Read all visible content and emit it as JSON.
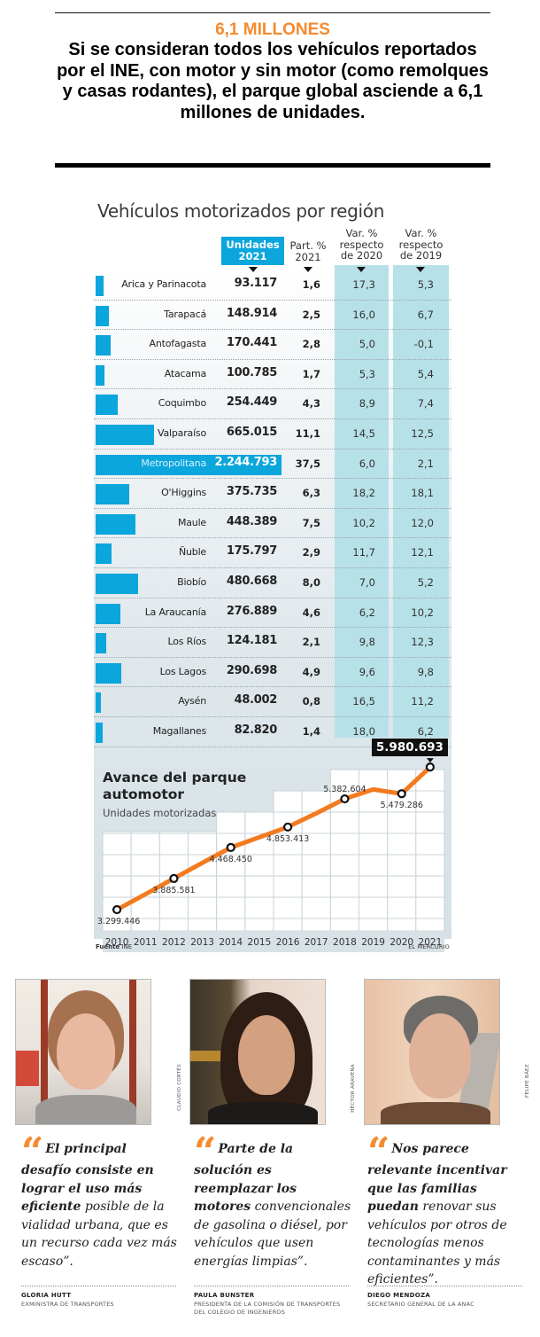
{
  "callout": {
    "kicker": "6,1 MILLONES",
    "text": "Si se consideran todos los vehículos reportados por el INE, con motor y sin motor (como remolques y casas rodantes), el parque global asciende a 6,1 millones de unidades."
  },
  "table": {
    "title": "Vehículos motorizados por región",
    "headers": {
      "units": "Unidades 2021",
      "part": "Part. % 2021",
      "var2020": "Var. % respecto de 2020",
      "var2019": "Var. % respecto de 2019"
    },
    "accent_color": "#0aa6dc",
    "highlight_color": "#b7e1e8",
    "rows": [
      {
        "region": "Arica y Parinacota",
        "units": "93.117",
        "part": "1,6",
        "var2020": "17,3",
        "var2019": "5,3",
        "units_value": 93117
      },
      {
        "region": "Tarapacá",
        "units": "148.914",
        "part": "2,5",
        "var2020": "16,0",
        "var2019": "6,7",
        "units_value": 148914
      },
      {
        "region": "Antofagasta",
        "units": "170.441",
        "part": "2,8",
        "var2020": "5,0",
        "var2019": "-0,1",
        "units_value": 170441
      },
      {
        "region": "Atacama",
        "units": "100.785",
        "part": "1,7",
        "var2020": "5,3",
        "var2019": "5,4",
        "units_value": 100785
      },
      {
        "region": "Coquimbo",
        "units": "254.449",
        "part": "4,3",
        "var2020": "8,9",
        "var2019": "7,4",
        "units_value": 254449
      },
      {
        "region": "Valparaíso",
        "units": "665.015",
        "part": "11,1",
        "var2020": "14,5",
        "var2019": "12,5",
        "units_value": 665015
      },
      {
        "region": "Metropolitana",
        "units": "2.244.793",
        "part": "37,5",
        "var2020": "6,0",
        "var2019": "2,1",
        "units_value": 2244793,
        "highlight": true
      },
      {
        "region": "O'Higgins",
        "units": "375.735",
        "part": "6,3",
        "var2020": "18,2",
        "var2019": "18,1",
        "units_value": 375735
      },
      {
        "region": "Maule",
        "units": "448.389",
        "part": "7,5",
        "var2020": "10,2",
        "var2019": "12,0",
        "units_value": 448389
      },
      {
        "region": "Ñuble",
        "units": "175.797",
        "part": "2,9",
        "var2020": "11,7",
        "var2019": "12,1",
        "units_value": 175797
      },
      {
        "region": "Biobío",
        "units": "480.668",
        "part": "8,0",
        "var2020": "7,0",
        "var2019": "5,2",
        "units_value": 480668
      },
      {
        "region": "La Araucanía",
        "units": "276.889",
        "part": "4,6",
        "var2020": "6,2",
        "var2019": "10,2",
        "units_value": 276889
      },
      {
        "region": "Los Ríos",
        "units": "124.181",
        "part": "2,1",
        "var2020": "9,8",
        "var2019": "12,3",
        "units_value": 124181
      },
      {
        "region": "Los Lagos",
        "units": "290.698",
        "part": "4,9",
        "var2020": "9,6",
        "var2019": "9,8",
        "units_value": 290698
      },
      {
        "region": "Aysén",
        "units": "48.002",
        "part": "0,8",
        "var2020": "16,5",
        "var2019": "11,2",
        "units_value": 48002
      },
      {
        "region": "Magallanes",
        "units": "82.820",
        "part": "1,4",
        "var2020": "18,0",
        "var2019": "6,2",
        "units_value": 82820
      }
    ]
  },
  "chart_data": {
    "type": "line",
    "title": "Avance del parque automotor",
    "subtitle": "Unidades motorizadas",
    "xlabel": "",
    "ylabel": "",
    "x": [
      "2010",
      "2011",
      "2012",
      "2013",
      "2014",
      "2015",
      "2016",
      "2017",
      "2018",
      "2019",
      "2020",
      "2021"
    ],
    "series": [
      {
        "name": "Unidades motorizadas",
        "color": "#f47a20",
        "values": [
          3299446,
          3590000,
          3885581,
          4180000,
          4468450,
          4660000,
          4853413,
          5110000,
          5382604,
          5560000,
          5479286,
          5980693
        ]
      }
    ],
    "labeled_points": [
      {
        "x": "2010",
        "label": "3.299.446"
      },
      {
        "x": "2012",
        "label": "3.885.581"
      },
      {
        "x": "2014",
        "label": "4.468.450"
      },
      {
        "x": "2016",
        "label": "4.853.413"
      },
      {
        "x": "2018",
        "label": "5.382.604"
      },
      {
        "x": "2020",
        "label": "5.479.286"
      },
      {
        "x": "2021",
        "label": "5.980.693",
        "highlight": true
      }
    ],
    "ylim": [
      2900000,
      6100000
    ],
    "grid": true,
    "legend": "none"
  },
  "footer": {
    "source_label": "Fuente",
    "source": "INE",
    "brand": "EL MERCURIO"
  },
  "quotes": [
    {
      "bold": "El principal desafío consiste en lograr el uso más eficiente",
      "rest": " posible de la vialidad urbana, que es un recurso cada vez más escaso”.",
      "name": "GLORIA HUTT",
      "role": "EXMINISTRA DE TRANSPORTES",
      "photo_credit": "CLAUDIO CORTÉS"
    },
    {
      "bold": "Parte de la solución es reemplazar los motores",
      "rest": " convencionales de gasolina o diésel, por vehículos que usen energías limpias”.",
      "name": "PAULA BUNSTER",
      "role": "PRESIDENTA DE LA COMISIÓN DE TRANSPORTES DEL COLEGIO DE INGENIEROS",
      "photo_credit": "HÉCTOR ARAVENA"
    },
    {
      "bold": "Nos parece relevante incentivar que las familias puedan",
      "rest": " renovar sus vehículos por otros de tecnologías menos contaminantes y más eficientes”.",
      "name": "DIEGO MENDOZA",
      "role": "SECRETARIO GENERAL DE LA ANAC",
      "photo_credit": "FELIPE BÁEZ"
    }
  ],
  "quote_mark": "“",
  "quote_color": "#f58a2e"
}
